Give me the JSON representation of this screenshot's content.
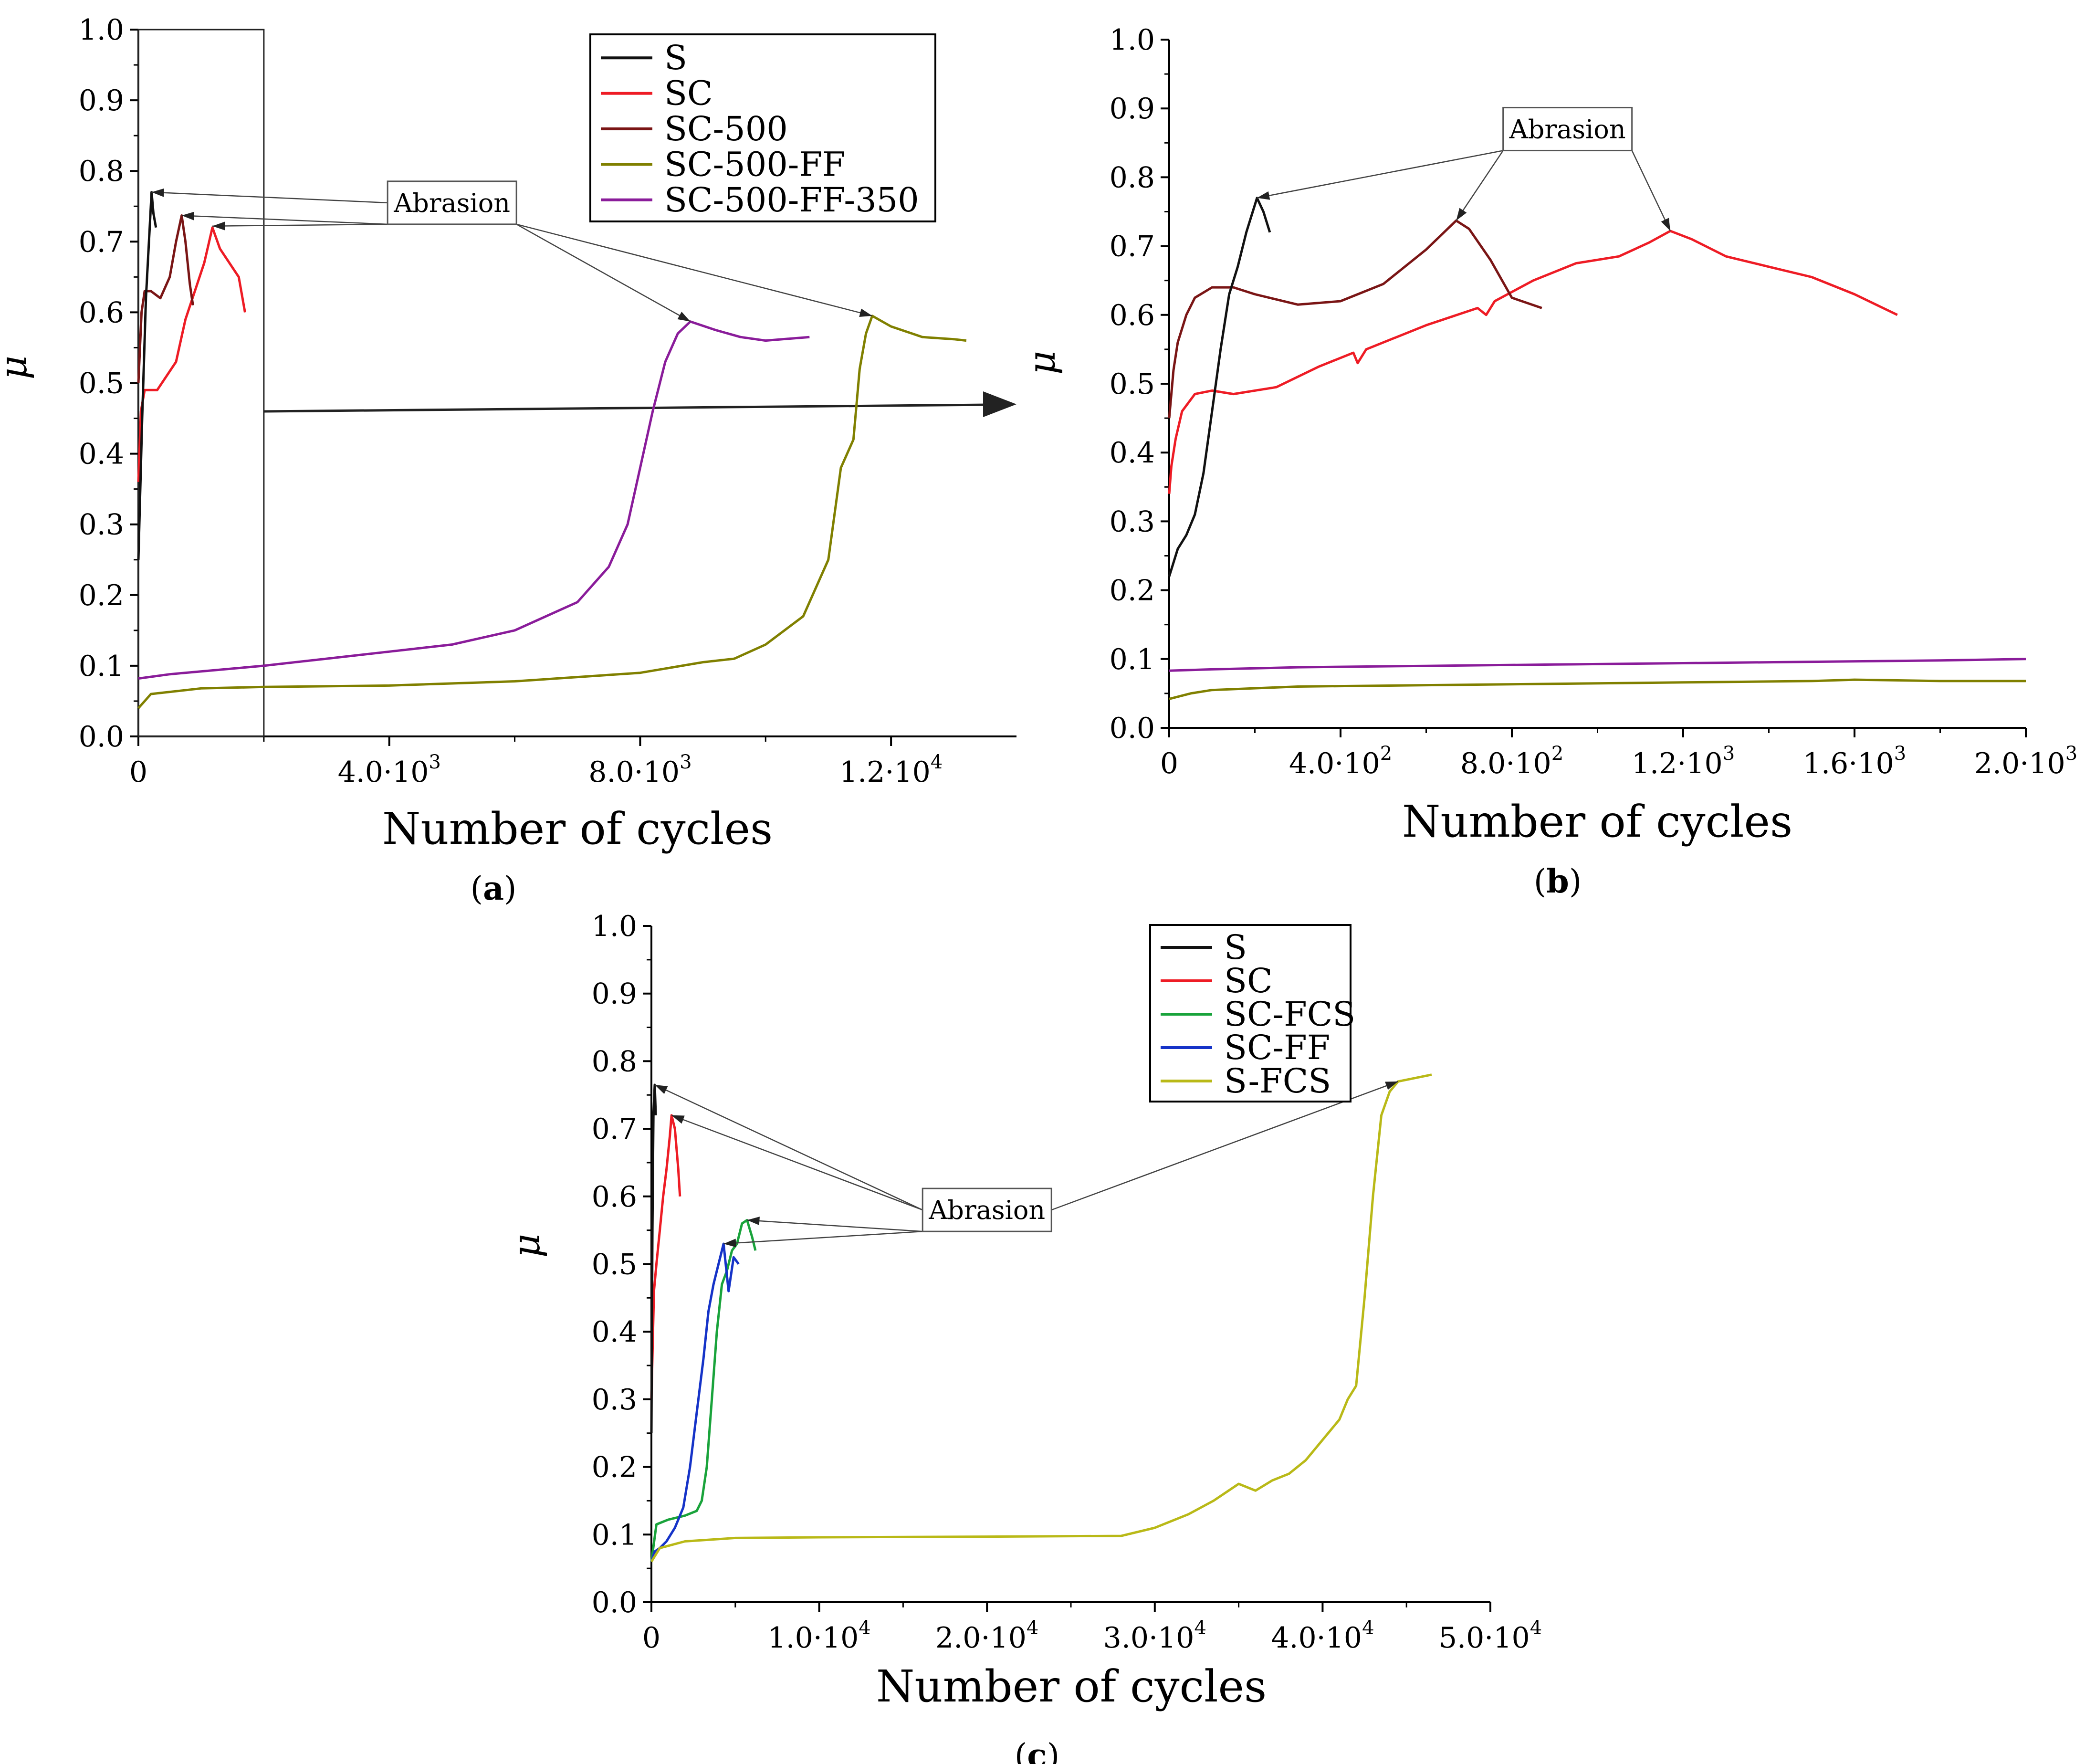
{
  "figure": {
    "colors": {
      "S": "#111111",
      "SC": "#ee1c25",
      "SC-500": "#7a1515",
      "SC-500-FF": "#808000",
      "SC-500-FF-350": "#8a1c9a",
      "SC-FCS": "#19a33b",
      "SC-FF": "#1533c8",
      "S-FCS": "#b9b917",
      "axis": "#000000",
      "annotation": "#444444"
    }
  },
  "chart_data": [
    {
      "panel": "a",
      "panel_label": "(a)",
      "type": "line",
      "xlabel": "Number of cycles",
      "ylabel": "μ",
      "xlim": [
        0,
        14000
      ],
      "ylim": [
        0,
        1.0
      ],
      "xticks": [
        {
          "v": 0,
          "label": "0"
        },
        {
          "v": 4000,
          "label": "4.0·10³"
        },
        {
          "v": 8000,
          "label": "8.0·10³"
        },
        {
          "v": 12000,
          "label": "1.2·10⁴"
        }
      ],
      "yticks": [
        {
          "v": 0.0,
          "label": "0.0"
        },
        {
          "v": 0.1,
          "label": "0.1"
        },
        {
          "v": 0.2,
          "label": "0.2"
        },
        {
          "v": 0.3,
          "label": "0.3"
        },
        {
          "v": 0.4,
          "label": "0.4"
        },
        {
          "v": 0.5,
          "label": "0.5"
        },
        {
          "v": 0.6,
          "label": "0.6"
        },
        {
          "v": 0.7,
          "label": "0.7"
        },
        {
          "v": 0.8,
          "label": "0.8"
        },
        {
          "v": 0.9,
          "label": "0.9"
        },
        {
          "v": 1.0,
          "label": "1.0"
        }
      ],
      "legend": [
        "S",
        "SC",
        "SC-500",
        "SC-500-FF",
        "SC-500-FF-350"
      ],
      "legend_position": "top-right",
      "zoom_box": {
        "x": [
          0,
          2000
        ],
        "y": [
          0,
          1.0
        ]
      },
      "annotation": {
        "text": "Abrasion",
        "x": 5000,
        "y": 0.755,
        "targets": [
          [
            210,
            0.77
          ],
          [
            690,
            0.737
          ],
          [
            1180,
            0.722
          ],
          [
            8800,
            0.587
          ],
          [
            11700,
            0.595
          ]
        ]
      },
      "series": [
        {
          "name": "S",
          "x": [
            0,
            60,
            120,
            180,
            210,
            240,
            280
          ],
          "y": [
            0.25,
            0.45,
            0.62,
            0.72,
            0.77,
            0.74,
            0.72
          ]
        },
        {
          "name": "SC",
          "x": [
            0,
            40,
            100,
            300,
            450,
            600,
            750,
            900,
            1050,
            1180,
            1300,
            1450,
            1600,
            1700
          ],
          "y": [
            0.36,
            0.46,
            0.49,
            0.49,
            0.51,
            0.53,
            0.59,
            0.63,
            0.67,
            0.72,
            0.69,
            0.67,
            0.65,
            0.6
          ]
        },
        {
          "name": "SC-500",
          "x": [
            0,
            50,
            100,
            200,
            350,
            500,
            600,
            690,
            750,
            820,
            870
          ],
          "y": [
            0.5,
            0.6,
            0.63,
            0.63,
            0.62,
            0.65,
            0.7,
            0.737,
            0.7,
            0.64,
            0.61
          ]
        },
        {
          "name": "SC-500-FF",
          "x": [
            0,
            200,
            1000,
            2000,
            4000,
            6000,
            8000,
            9000,
            9500,
            10000,
            10600,
            11000,
            11200,
            11400,
            11500,
            11600,
            11700,
            12000,
            12500,
            13000,
            13200
          ],
          "y": [
            0.04,
            0.06,
            0.068,
            0.07,
            0.072,
            0.078,
            0.09,
            0.105,
            0.11,
            0.13,
            0.17,
            0.25,
            0.38,
            0.42,
            0.52,
            0.57,
            0.595,
            0.58,
            0.565,
            0.562,
            0.56
          ]
        },
        {
          "name": "SC-500-FF-350",
          "x": [
            0,
            500,
            1000,
            2000,
            3000,
            4000,
            5000,
            6000,
            6500,
            7000,
            7500,
            7800,
            8000,
            8200,
            8400,
            8600,
            8800,
            9200,
            9600,
            10000,
            10700
          ],
          "y": [
            0.082,
            0.088,
            0.092,
            0.1,
            0.11,
            0.12,
            0.13,
            0.15,
            0.17,
            0.19,
            0.24,
            0.3,
            0.38,
            0.46,
            0.53,
            0.57,
            0.587,
            0.575,
            0.565,
            0.56,
            0.565
          ]
        }
      ]
    },
    {
      "panel": "b",
      "panel_label": "(b)",
      "type": "line",
      "xlabel": "Number of cycles",
      "ylabel": "μ",
      "xlim": [
        0,
        2000
      ],
      "ylim": [
        0,
        1.0
      ],
      "xticks": [
        {
          "v": 0,
          "label": "0"
        },
        {
          "v": 400,
          "label": "4.0·10²"
        },
        {
          "v": 800,
          "label": "8.0·10²"
        },
        {
          "v": 1200,
          "label": "1.2·10³"
        },
        {
          "v": 1600,
          "label": "1.6·10³"
        },
        {
          "v": 2000,
          "label": "2.0·10³"
        }
      ],
      "yticks": [
        {
          "v": 0.0,
          "label": "0.0"
        },
        {
          "v": 0.1,
          "label": "0.1"
        },
        {
          "v": 0.2,
          "label": "0.2"
        },
        {
          "v": 0.3,
          "label": "0.3"
        },
        {
          "v": 0.4,
          "label": "0.4"
        },
        {
          "v": 0.5,
          "label": "0.5"
        },
        {
          "v": 0.6,
          "label": "0.6"
        },
        {
          "v": 0.7,
          "label": "0.7"
        },
        {
          "v": 0.8,
          "label": "0.8"
        },
        {
          "v": 0.9,
          "label": "0.9"
        },
        {
          "v": 1.0,
          "label": "1.0"
        }
      ],
      "annotation": {
        "text": "Abrasion",
        "x": 930,
        "y": 0.87,
        "targets": [
          [
            205,
            0.77
          ],
          [
            670,
            0.737
          ],
          [
            1170,
            0.722
          ]
        ]
      },
      "series": [
        {
          "name": "S",
          "x": [
            0,
            20,
            40,
            60,
            80,
            100,
            120,
            140,
            160,
            180,
            205,
            220,
            235
          ],
          "y": [
            0.22,
            0.26,
            0.28,
            0.31,
            0.37,
            0.46,
            0.55,
            0.63,
            0.67,
            0.72,
            0.77,
            0.75,
            0.72
          ]
        },
        {
          "name": "SC",
          "x": [
            0,
            5,
            15,
            30,
            60,
            100,
            150,
            250,
            350,
            430,
            440,
            460,
            600,
            720,
            740,
            760,
            850,
            950,
            1050,
            1120,
            1170,
            1220,
            1300,
            1400,
            1500,
            1600,
            1700
          ],
          "y": [
            0.34,
            0.38,
            0.42,
            0.46,
            0.485,
            0.49,
            0.485,
            0.495,
            0.525,
            0.545,
            0.53,
            0.55,
            0.585,
            0.61,
            0.6,
            0.62,
            0.65,
            0.675,
            0.685,
            0.705,
            0.722,
            0.71,
            0.685,
            0.67,
            0.655,
            0.63,
            0.6
          ]
        },
        {
          "name": "SC-500",
          "x": [
            0,
            10,
            20,
            40,
            60,
            100,
            150,
            200,
            300,
            400,
            500,
            600,
            670,
            700,
            750,
            800,
            870
          ],
          "y": [
            0.45,
            0.52,
            0.56,
            0.6,
            0.625,
            0.64,
            0.64,
            0.63,
            0.615,
            0.62,
            0.645,
            0.695,
            0.737,
            0.725,
            0.68,
            0.625,
            0.61
          ]
        },
        {
          "name": "SC-500-FF",
          "x": [
            0,
            50,
            100,
            300,
            600,
            900,
            1200,
            1500,
            1600,
            1800,
            2000
          ],
          "y": [
            0.042,
            0.05,
            0.055,
            0.06,
            0.062,
            0.064,
            0.066,
            0.068,
            0.07,
            0.068,
            0.068
          ]
        },
        {
          "name": "SC-500-FF-350",
          "x": [
            0,
            100,
            300,
            600,
            900,
            1200,
            1500,
            1800,
            2000
          ],
          "y": [
            0.083,
            0.085,
            0.088,
            0.09,
            0.092,
            0.094,
            0.096,
            0.098,
            0.1
          ]
        }
      ]
    },
    {
      "panel": "c",
      "panel_label": "(c)",
      "type": "line",
      "xlabel": "Number of cycles",
      "ylabel": "μ",
      "xlim": [
        0,
        50000
      ],
      "ylim": [
        0,
        1.0
      ],
      "xticks": [
        {
          "v": 0,
          "label": "0"
        },
        {
          "v": 10000,
          "label": "1.0·10⁴"
        },
        {
          "v": 20000,
          "label": "2.0·10⁴"
        },
        {
          "v": 30000,
          "label": "3.0·10⁴"
        },
        {
          "v": 40000,
          "label": "4.0·10⁴"
        },
        {
          "v": 50000,
          "label": "5.0·10⁴"
        }
      ],
      "yticks": [
        {
          "v": 0.0,
          "label": "0.0"
        },
        {
          "v": 0.1,
          "label": "0.1"
        },
        {
          "v": 0.2,
          "label": "0.2"
        },
        {
          "v": 0.3,
          "label": "0.3"
        },
        {
          "v": 0.4,
          "label": "0.4"
        },
        {
          "v": 0.5,
          "label": "0.5"
        },
        {
          "v": 0.6,
          "label": "0.6"
        },
        {
          "v": 0.7,
          "label": "0.7"
        },
        {
          "v": 0.8,
          "label": "0.8"
        },
        {
          "v": 0.9,
          "label": "0.9"
        },
        {
          "v": 1.0,
          "label": "1.0"
        }
      ],
      "legend": [
        "S",
        "SC",
        "SC-FCS",
        "SC-FF",
        "S-FCS"
      ],
      "legend_position": "top-right",
      "annotation": {
        "text": "Abrasion",
        "x": 20000,
        "y": 0.58,
        "targets": [
          [
            200,
            0.765
          ],
          [
            1200,
            0.72
          ],
          [
            5700,
            0.565
          ],
          [
            4300,
            0.53
          ],
          [
            44500,
            0.77
          ]
        ]
      },
      "series": [
        {
          "name": "S",
          "x": [
            0,
            60,
            120,
            200,
            260
          ],
          "y": [
            0.25,
            0.55,
            0.72,
            0.765,
            0.72
          ]
        },
        {
          "name": "SC",
          "x": [
            0,
            150,
            300,
            500,
            700,
            900,
            1100,
            1200,
            1400,
            1600,
            1700
          ],
          "y": [
            0.3,
            0.46,
            0.5,
            0.55,
            0.6,
            0.64,
            0.69,
            0.72,
            0.7,
            0.64,
            0.6
          ]
        },
        {
          "name": "SC-FCS",
          "x": [
            0,
            300,
            1000,
            2000,
            2700,
            3000,
            3300,
            3600,
            3900,
            4200,
            4500,
            4800,
            5100,
            5400,
            5700,
            6000,
            6200
          ],
          "y": [
            0.06,
            0.115,
            0.122,
            0.128,
            0.135,
            0.15,
            0.2,
            0.3,
            0.4,
            0.47,
            0.49,
            0.52,
            0.53,
            0.56,
            0.565,
            0.54,
            0.52
          ]
        },
        {
          "name": "SC-FF",
          "x": [
            0,
            200,
            500,
            900,
            1400,
            1900,
            2300,
            2700,
            3100,
            3400,
            3700,
            4000,
            4300,
            4600,
            4900,
            5200
          ],
          "y": [
            0.06,
            0.075,
            0.08,
            0.09,
            0.11,
            0.14,
            0.2,
            0.28,
            0.36,
            0.43,
            0.47,
            0.5,
            0.53,
            0.46,
            0.51,
            0.5
          ]
        },
        {
          "name": "S-FCS",
          "x": [
            0,
            500,
            2000,
            5000,
            10000,
            20000,
            28000,
            30000,
            32000,
            33500,
            35000,
            36000,
            37000,
            38000,
            39000,
            40000,
            41000,
            41500,
            42000,
            42500,
            43000,
            43500,
            44000,
            44500,
            45500,
            46500
          ],
          "y": [
            0.06,
            0.08,
            0.09,
            0.095,
            0.096,
            0.097,
            0.098,
            0.11,
            0.13,
            0.15,
            0.175,
            0.165,
            0.18,
            0.19,
            0.21,
            0.24,
            0.27,
            0.3,
            0.32,
            0.45,
            0.6,
            0.72,
            0.755,
            0.77,
            0.775,
            0.78
          ]
        }
      ]
    }
  ]
}
